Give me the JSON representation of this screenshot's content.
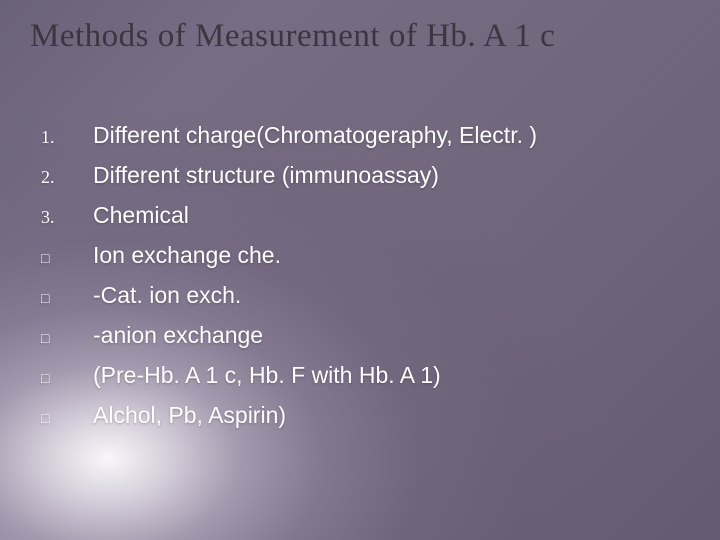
{
  "slide": {
    "title": "Methods of Measurement of Hb. A 1 c",
    "title_color": "#3b3640",
    "title_fontsize": 33,
    "background": {
      "base_gradient_colors": [
        "#6a6278",
        "#766d84",
        "#74687e",
        "#6e6379",
        "#655a70"
      ],
      "light_source": {
        "position": "15% 85%",
        "inner_color": "#ffffff",
        "outer_fade": "#5f5870"
      }
    },
    "body_text_color": "#ffffff",
    "body_fontsize": 23,
    "items": [
      {
        "marker": "1.",
        "marker_type": "num",
        "text": "Different charge(Chromatogeraphy, Electr. )"
      },
      {
        "marker": "2.",
        "marker_type": "num",
        "text": "Different structure (immunoassay)"
      },
      {
        "marker": "3.",
        "marker_type": "num",
        "text": "Chemical"
      },
      {
        "marker": "□",
        "marker_type": "box",
        "text": "Ion exchange che."
      },
      {
        "marker": "□",
        "marker_type": "box",
        "text": "-Cat. ion exch."
      },
      {
        "marker": "□",
        "marker_type": "box",
        "text": "-anion exchange"
      },
      {
        "marker": "□",
        "marker_type": "box",
        "text": "(Pre-Hb. A 1 c, Hb. F with Hb. A 1)"
      },
      {
        "marker": "□",
        "marker_type": "box",
        "text": "Alchol, Pb, Aspirin)"
      }
    ]
  }
}
